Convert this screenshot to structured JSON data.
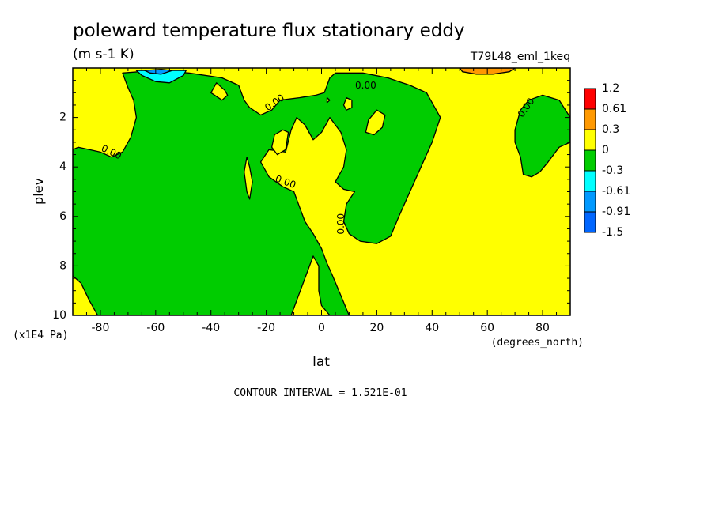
{
  "chart_data": {
    "type": "heatmap",
    "title": "poleward temperature flux stationary eddy",
    "units": "(m s-1 K)",
    "subtitle": "T79L48_eml_1keq",
    "xlabel": "lat",
    "xunits": "(degrees_north)",
    "ylabel": "plev",
    "yunits": "(x1E4 Pa)",
    "xlim": [
      -90,
      90
    ],
    "ylim": [
      10,
      0
    ],
    "x_ticks": [
      -80,
      -60,
      -40,
      -20,
      0,
      20,
      40,
      60,
      80
    ],
    "x_tick_labels": [
      "-80",
      "-60",
      "-40",
      "-20",
      "0",
      "20",
      "40",
      "60",
      "80"
    ],
    "y_ticks": [
      2,
      4,
      6,
      8,
      10
    ],
    "y_tick_labels": [
      "2",
      "4",
      "6",
      "8",
      "10"
    ],
    "contour_interval_text": "CONTOUR INTERVAL = 1.521E-01",
    "colorbar": {
      "labels": [
        "1.2",
        "0.61",
        "0.3",
        "0",
        "-0.3",
        "-0.61",
        "-0.91",
        "-1.5"
      ],
      "colors": [
        "#ff0000",
        "#ff9900",
        "#ffff00",
        "#00cc00",
        "#00ffff",
        "#0099ff",
        "#0066ff"
      ]
    },
    "background_color": "#ffff00",
    "regions": [
      {
        "value_class": "0 to -0.3",
        "color": "#00cc00",
        "points": [
          [
            -90,
            3.3
          ],
          [
            -88,
            3.2
          ],
          [
            -84,
            3.3
          ],
          [
            -80,
            3.4
          ],
          [
            -76,
            3.6
          ],
          [
            -72,
            3.4
          ],
          [
            -69,
            2.8
          ],
          [
            -67,
            2.0
          ],
          [
            -68,
            1.3
          ],
          [
            -70,
            0.8
          ],
          [
            -72,
            0.2
          ],
          [
            -60,
            0.1
          ],
          [
            -48,
            0.2
          ],
          [
            -36,
            0.4
          ],
          [
            -30,
            0.7
          ],
          [
            -28,
            1.3
          ],
          [
            -26,
            1.6
          ],
          [
            -22,
            1.9
          ],
          [
            -18,
            1.7
          ],
          [
            -15,
            1.3
          ],
          [
            -8,
            1.2
          ],
          [
            -2,
            1.1
          ],
          [
            1,
            1.0
          ],
          [
            3,
            0.4
          ],
          [
            5,
            0.2
          ],
          [
            15,
            0.2
          ],
          [
            24,
            0.4
          ],
          [
            32,
            0.7
          ],
          [
            38,
            1.0
          ],
          [
            40,
            1.4
          ],
          [
            43,
            2.0
          ],
          [
            40,
            3.0
          ],
          [
            36,
            4.0
          ],
          [
            32,
            5.0
          ],
          [
            28,
            6.0
          ],
          [
            25,
            6.8
          ],
          [
            20,
            7.1
          ],
          [
            14,
            7.0
          ],
          [
            10,
            6.7
          ],
          [
            8,
            6.2
          ],
          [
            9,
            5.5
          ],
          [
            12,
            5.0
          ],
          [
            8,
            4.9
          ],
          [
            5,
            4.6
          ],
          [
            8,
            4.0
          ],
          [
            9,
            3.3
          ],
          [
            7,
            2.6
          ],
          [
            3,
            2.0
          ],
          [
            0,
            2.6
          ],
          [
            -3,
            2.9
          ],
          [
            -6,
            2.3
          ],
          [
            -9,
            2.0
          ],
          [
            -11,
            2.5
          ],
          [
            -13,
            3.4
          ],
          [
            -19,
            3.3
          ],
          [
            -22,
            3.8
          ],
          [
            -19,
            4.4
          ],
          [
            -14,
            4.8
          ],
          [
            -10,
            5.0
          ],
          [
            -8,
            5.6
          ],
          [
            -6,
            6.2
          ],
          [
            -3,
            6.7
          ],
          [
            0,
            7.3
          ],
          [
            2,
            7.9
          ],
          [
            4,
            8.4
          ],
          [
            7,
            9.2
          ],
          [
            10,
            10.0
          ],
          [
            3,
            10.0
          ],
          [
            0,
            9.6
          ],
          [
            -1,
            9.0
          ],
          [
            -1,
            8.0
          ],
          [
            -3,
            7.6
          ],
          [
            -6,
            8.5
          ],
          [
            -9,
            9.4
          ],
          [
            -11,
            10.0
          ],
          [
            -81,
            10.0
          ],
          [
            -84,
            9.4
          ],
          [
            -87,
            8.7
          ],
          [
            -90,
            8.4
          ]
        ]
      },
      {
        "value_class": "0 to -0.3",
        "color": "#00cc00",
        "points": [
          [
            75,
            1.3
          ],
          [
            80,
            1.1
          ],
          [
            86,
            1.3
          ],
          [
            90,
            2.0
          ],
          [
            90,
            3.0
          ],
          [
            86,
            3.2
          ],
          [
            82,
            3.8
          ],
          [
            79,
            4.2
          ],
          [
            76,
            4.4
          ],
          [
            73,
            4.3
          ],
          [
            72,
            3.6
          ],
          [
            70,
            3.0
          ],
          [
            70,
            2.5
          ],
          [
            72,
            1.7
          ]
        ]
      },
      {
        "value_class": "0 to 0.3",
        "color": "#ffff00",
        "points": [
          [
            -38,
            0.6
          ],
          [
            -35,
            0.9
          ],
          [
            -34,
            1.1
          ],
          [
            -36,
            1.3
          ],
          [
            -40,
            1.0
          ]
        ]
      },
      {
        "value_class": "0 to 0.3",
        "color": "#ffff00",
        "points": [
          [
            -17,
            2.7
          ],
          [
            -14,
            2.5
          ],
          [
            -12,
            2.6
          ],
          [
            -13,
            3.3
          ],
          [
            -16,
            3.5
          ],
          [
            -18,
            3.2
          ]
        ]
      },
      {
        "value_class": "0 to 0.3",
        "color": "#ffff00",
        "points": [
          [
            -27,
            3.6
          ],
          [
            -26,
            4.0
          ],
          [
            -25,
            4.6
          ],
          [
            -26,
            5.3
          ],
          [
            -27,
            5.0
          ],
          [
            -28,
            4.2
          ]
        ]
      },
      {
        "value_class": "0 to 0.3",
        "color": "#ffff00",
        "points": [
          [
            20,
            1.7
          ],
          [
            23,
            1.9
          ],
          [
            22,
            2.4
          ],
          [
            19,
            2.7
          ],
          [
            16,
            2.6
          ],
          [
            17,
            2.1
          ]
        ]
      },
      {
        "value_class": "0 to 0.3",
        "color": "#ffff00",
        "points": [
          [
            9,
            1.2
          ],
          [
            11,
            1.3
          ],
          [
            11,
            1.6
          ],
          [
            9,
            1.7
          ],
          [
            8,
            1.5
          ]
        ]
      },
      {
        "value_class": "0 to 0.3",
        "color": "#ffff00",
        "points": [
          [
            2,
            1.2
          ],
          [
            3,
            1.3
          ],
          [
            2,
            1.4
          ]
        ]
      },
      {
        "value_class": "-0.3 to -0.61",
        "color": "#00ffff",
        "points": [
          [
            -67,
            0.1
          ],
          [
            -58,
            0.1
          ],
          [
            -49,
            0.1
          ],
          [
            -50,
            0.3
          ],
          [
            -55,
            0.6
          ],
          [
            -60,
            0.55
          ],
          [
            -65,
            0.3
          ]
        ]
      },
      {
        "value_class": "-0.61 to -0.91",
        "color": "#0099ff",
        "points": [
          [
            -64,
            0.1
          ],
          [
            -58,
            0.05
          ],
          [
            -54,
            0.1
          ],
          [
            -58,
            0.25
          ],
          [
            -62,
            0.2
          ]
        ]
      },
      {
        "value_class": "0.3 to 0.61",
        "color": "#ff9900",
        "points": [
          [
            50,
            0.0
          ],
          [
            70,
            0.0
          ],
          [
            68,
            0.15
          ],
          [
            62,
            0.25
          ],
          [
            56,
            0.25
          ],
          [
            51,
            0.15
          ]
        ]
      }
    ],
    "zero_contour_labels": [
      {
        "text": "0.00",
        "x": 16,
        "y": 0.7,
        "rotate": 0
      },
      {
        "text": "0.00",
        "x": -17,
        "y": 1.4,
        "rotate": -35
      },
      {
        "text": "0.00",
        "x": 74,
        "y": 1.6,
        "rotate": -55
      },
      {
        "text": "0.00",
        "x": -76,
        "y": 3.4,
        "rotate": 25
      },
      {
        "text": "0.00",
        "x": -13,
        "y": 4.6,
        "rotate": 20
      },
      {
        "text": "0.00",
        "x": 7,
        "y": 6.3,
        "rotate": -90
      }
    ]
  }
}
